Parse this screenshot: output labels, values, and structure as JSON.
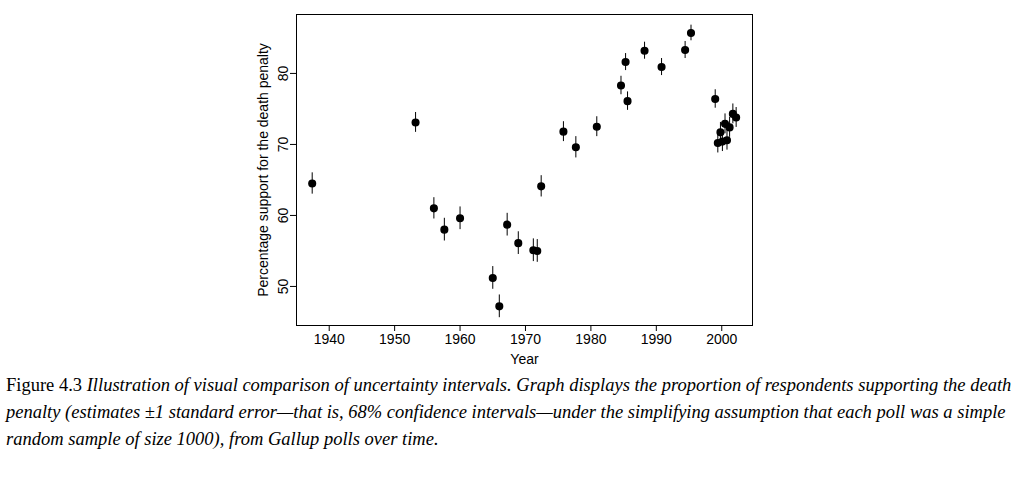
{
  "chart_data": {
    "type": "scatter",
    "x_label": "Year",
    "y_label": "Percentage support for the death penalty",
    "caption_label": "Figure 4.3",
    "caption": "Illustration of visual comparison of uncertainty intervals. Graph displays the proportion of respondents supporting the death penalty (estimates ±1 standard error—that is, 68% confidence intervals—under the simplifying assumption that each poll was a simple random sample of size 1000), from Gallup polls over time.",
    "x": [
      1937.4,
      1953.2,
      1956.0,
      1957.6,
      1960.0,
      1965.0,
      1966.0,
      1967.2,
      1968.9,
      1971.2,
      1971.8,
      1972.4,
      1975.8,
      1977.7,
      1980.9,
      1984.6,
      1985.3,
      1985.6,
      1988.2,
      1990.8,
      1994.4,
      1995.3,
      1999.0,
      1999.4,
      1999.8,
      2000.1,
      2000.5,
      2000.8,
      2001.2,
      2001.7,
      2002.2
    ],
    "values": [
      64.5,
      73.1,
      61.0,
      58.0,
      59.6,
      51.2,
      47.2,
      58.7,
      56.1,
      55.1,
      55.0,
      64.1,
      71.8,
      69.6,
      72.5,
      78.3,
      81.6,
      76.1,
      83.2,
      80.9,
      83.3,
      85.7,
      76.4,
      70.2,
      71.7,
      70.4,
      72.9,
      70.6,
      72.4,
      74.3,
      73.8
    ],
    "errors": [
      1.5,
      1.4,
      1.5,
      1.6,
      1.6,
      1.6,
      1.6,
      1.6,
      1.6,
      1.6,
      1.6,
      1.5,
      1.4,
      1.5,
      1.4,
      1.3,
      1.2,
      1.3,
      1.2,
      1.2,
      1.2,
      1.1,
      1.3,
      1.4,
      1.4,
      1.4,
      1.4,
      1.4,
      1.4,
      1.4,
      1.4
    ],
    "color": "#000000",
    "marker": "circle",
    "xlim": [
      1935,
      2004.7
    ],
    "xticks": [
      1940,
      1950,
      1960,
      1970,
      1980,
      1990,
      2000
    ],
    "ylim": [
      44.5,
      88.3
    ],
    "yticks": [
      50,
      60,
      70,
      80
    ],
    "grid": false
  }
}
